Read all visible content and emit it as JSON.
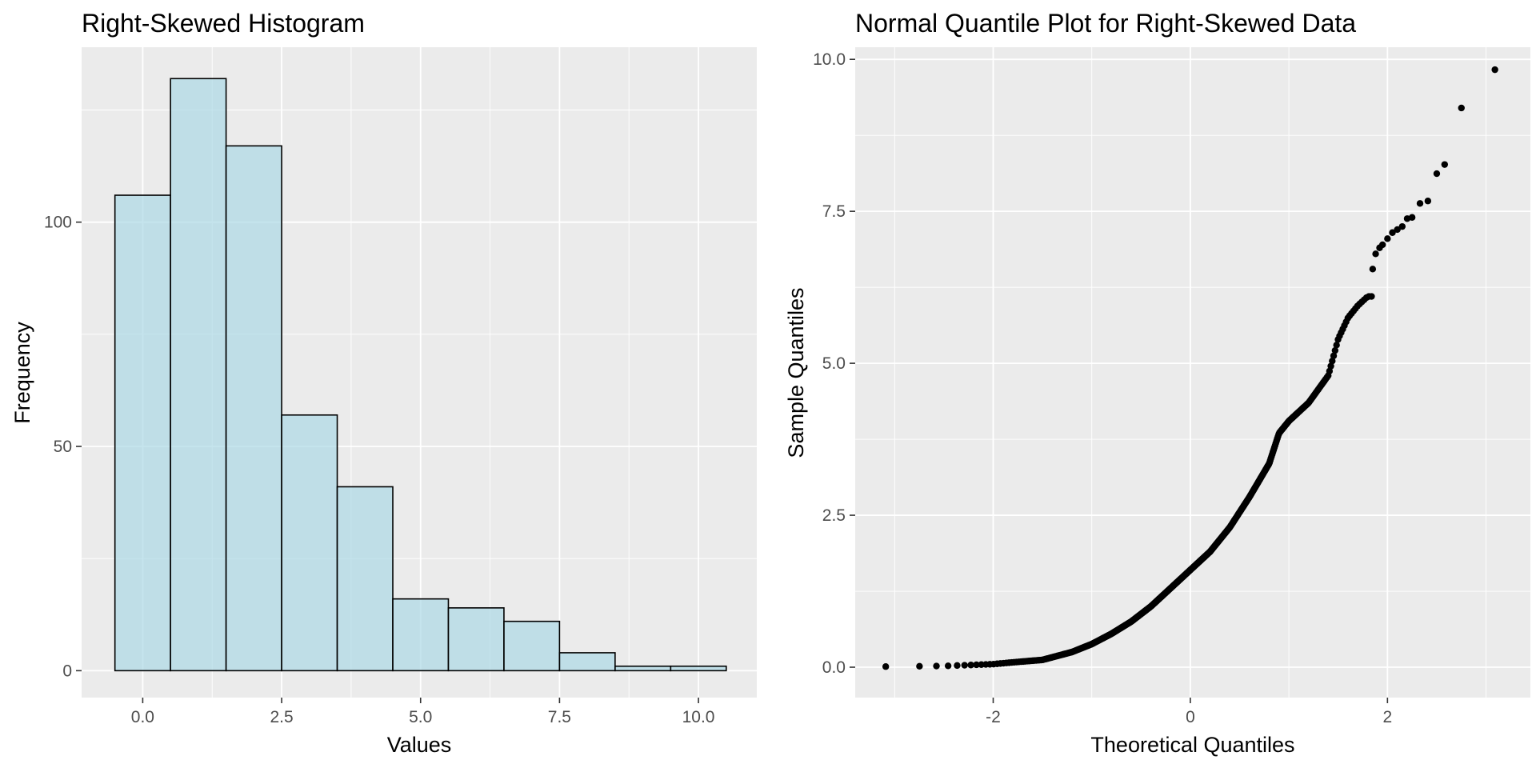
{
  "chart_data": [
    {
      "type": "bar",
      "title": "Right-Skewed Histogram",
      "xlabel": "Values",
      "ylabel": "Frequency",
      "x_tick_labels": [
        "0.0",
        "2.5",
        "5.0",
        "7.5",
        "10.0"
      ],
      "y_tick_labels": [
        "0",
        "50",
        "100"
      ],
      "bins": [
        {
          "start": -0.5,
          "end": 0.5,
          "count": 106
        },
        {
          "start": 0.5,
          "end": 1.5,
          "count": 132
        },
        {
          "start": 1.5,
          "end": 2.5,
          "count": 117
        },
        {
          "start": 2.5,
          "end": 3.5,
          "count": 57
        },
        {
          "start": 3.5,
          "end": 4.5,
          "count": 41
        },
        {
          "start": 4.5,
          "end": 5.5,
          "count": 16
        },
        {
          "start": 5.5,
          "end": 6.5,
          "count": 14
        },
        {
          "start": 6.5,
          "end": 7.5,
          "count": 11
        },
        {
          "start": 7.5,
          "end": 8.5,
          "count": 4
        },
        {
          "start": 8.5,
          "end": 9.5,
          "count": 1
        },
        {
          "start": 9.5,
          "end": 10.5,
          "count": 1
        }
      ],
      "xlim": [
        -1.1,
        11.05
      ],
      "ylim": [
        -6,
        139
      ],
      "x_major_ticks": [
        0,
        2.5,
        5,
        7.5,
        10
      ],
      "x_minor_ticks": [
        1.25,
        3.75,
        6.25,
        8.75
      ],
      "y_major_ticks": [
        0,
        50,
        100
      ],
      "y_minor_ticks": [
        25,
        75,
        125
      ],
      "grid": true,
      "colors": {
        "fill": "#add8e6",
        "stroke": "#000000",
        "panel": "#ebebeb",
        "grid": "#ffffff"
      }
    },
    {
      "type": "scatter",
      "title": "Normal Quantile Plot for Right-Skewed Data",
      "xlabel": "Theoretical Quantiles",
      "ylabel": "Sample Quantiles",
      "x_tick_labels": [
        "-2",
        "0",
        "2"
      ],
      "y_tick_labels": [
        "0.0",
        "2.5",
        "5.0",
        "7.5",
        "10.0"
      ],
      "xlim": [
        -3.4,
        3.45
      ],
      "ylim": [
        -0.5,
        10.2
      ],
      "x_major_ticks": [
        -2,
        0,
        2
      ],
      "x_minor_ticks": [
        -3,
        -1,
        1,
        3
      ],
      "y_major_ticks": [
        0,
        2.5,
        5,
        7.5,
        10
      ],
      "y_minor_ticks": [
        1.25,
        3.75,
        6.25,
        8.75
      ],
      "grid": true,
      "points_shown": 500,
      "quantile_curve": [
        [
          -3.1,
          0.01
        ],
        [
          -2.5,
          0.02
        ],
        [
          -2.0,
          0.05
        ],
        [
          -1.8,
          0.08
        ],
        [
          -1.5,
          0.12
        ],
        [
          -1.2,
          0.25
        ],
        [
          -1.0,
          0.38
        ],
        [
          -0.8,
          0.55
        ],
        [
          -0.6,
          0.75
        ],
        [
          -0.4,
          1.0
        ],
        [
          -0.2,
          1.3
        ],
        [
          0.0,
          1.6
        ],
        [
          0.2,
          1.9
        ],
        [
          0.4,
          2.3
        ],
        [
          0.6,
          2.8
        ],
        [
          0.8,
          3.35
        ],
        [
          0.9,
          3.85
        ],
        [
          1.0,
          4.05
        ],
        [
          1.2,
          4.35
        ],
        [
          1.4,
          4.8
        ],
        [
          1.5,
          5.4
        ],
        [
          1.6,
          5.75
        ],
        [
          1.7,
          5.95
        ],
        [
          1.8,
          6.1
        ]
      ],
      "upper_tail": [
        [
          1.85,
          6.55
        ],
        [
          1.88,
          6.8
        ],
        [
          1.92,
          6.9
        ],
        [
          1.95,
          6.95
        ],
        [
          2.0,
          7.05
        ],
        [
          2.05,
          7.15
        ],
        [
          2.1,
          7.2
        ],
        [
          2.15,
          7.25
        ],
        [
          2.2,
          7.38
        ],
        [
          2.25,
          7.4
        ],
        [
          2.33,
          7.63
        ],
        [
          2.41,
          7.67
        ],
        [
          2.5,
          8.12
        ],
        [
          2.58,
          8.27
        ],
        [
          2.75,
          9.2
        ],
        [
          3.09,
          9.83
        ]
      ],
      "colors": {
        "point": "#000000",
        "panel": "#ebebeb",
        "grid": "#ffffff"
      }
    }
  ]
}
